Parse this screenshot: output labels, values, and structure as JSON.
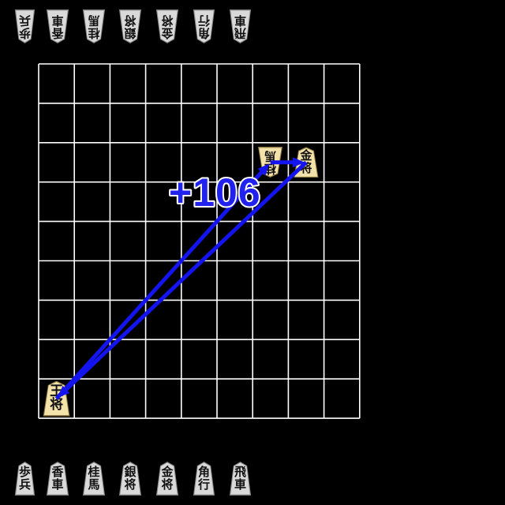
{
  "app": {
    "title": "shogi-analysis-view",
    "background_color": "#000000"
  },
  "evaluation": {
    "score_label": "+106",
    "text_color": "#2222ee",
    "outline_color": "#ffffff"
  },
  "colors": {
    "grid": "#ffffff",
    "arrow": "#1414f0",
    "hand_piece_fill": "#d9d9d9",
    "hand_piece_edge": "#7e7e7e",
    "board_piece_fill": "#f3e2a9",
    "board_piece_edge": "#8f7a45",
    "kanji": "#111111"
  },
  "board": {
    "files": 9,
    "ranks": 9,
    "pieces": [
      {
        "name": "knight",
        "label": "桂馬",
        "owner": "opponent",
        "rotated": true,
        "col": 7,
        "row": 3
      },
      {
        "name": "gold-general",
        "label": "金将",
        "owner": "player",
        "rotated": false,
        "col": 8,
        "row": 3
      },
      {
        "name": "king",
        "label": "王将",
        "owner": "player",
        "rotated": false,
        "col": 1,
        "row": 9
      }
    ]
  },
  "arrows": {
    "moves": [
      {
        "from": {
          "col": 7,
          "row": 3
        },
        "to": {
          "col": 8,
          "row": 3
        }
      },
      {
        "from": {
          "col": 8,
          "row": 3
        },
        "to": {
          "col": 1,
          "row": 9
        }
      },
      {
        "from": {
          "col": 1,
          "row": 9
        },
        "to": {
          "col": 7,
          "row": 3
        }
      }
    ]
  },
  "hand_top": {
    "side": "opponent",
    "rotated": true,
    "pieces": [
      {
        "name": "pawn",
        "label": "歩兵"
      },
      {
        "name": "lance",
        "label": "香車"
      },
      {
        "name": "knight",
        "label": "桂馬"
      },
      {
        "name": "silver-general",
        "label": "銀将"
      },
      {
        "name": "gold-general",
        "label": "金将"
      },
      {
        "name": "bishop",
        "label": "角行"
      },
      {
        "name": "rook",
        "label": "飛車"
      }
    ]
  },
  "hand_bottom": {
    "side": "player",
    "rotated": false,
    "pieces": [
      {
        "name": "pawn",
        "label": "歩兵"
      },
      {
        "name": "lance",
        "label": "香車"
      },
      {
        "name": "knight",
        "label": "桂馬"
      },
      {
        "name": "silver-general",
        "label": "銀将"
      },
      {
        "name": "gold-general",
        "label": "金将"
      },
      {
        "name": "bishop",
        "label": "角行"
      },
      {
        "name": "rook",
        "label": "飛車"
      }
    ]
  }
}
